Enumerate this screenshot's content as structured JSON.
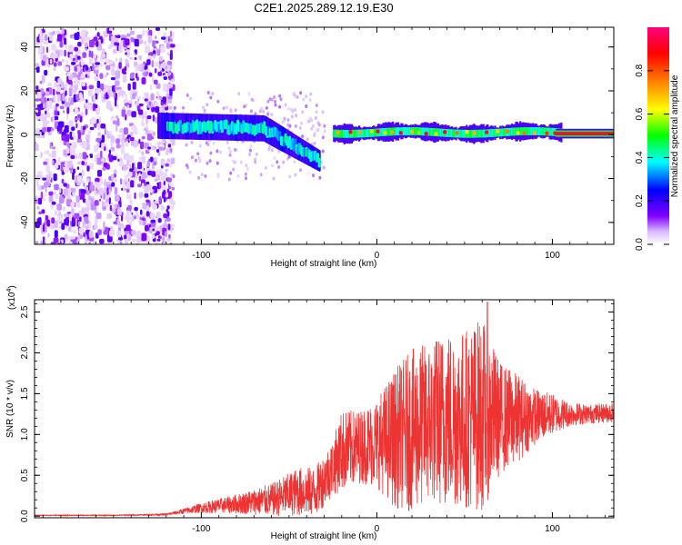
{
  "figure_title": "C2E1.2025.289.12.19.E30",
  "chart_data": [
    {
      "type": "heatmap",
      "xlabel": "Height of straight line (km)",
      "ylabel": "Frequency (Hz)",
      "xlim": [
        -195,
        135
      ],
      "ylim": [
        -50,
        49
      ],
      "xticks": [
        -100,
        0,
        100
      ],
      "yticks": [
        -40,
        -20,
        0,
        20,
        40
      ],
      "xtick_labels": [
        "-100",
        "0",
        "100"
      ],
      "ytick_labels": [
        "-40",
        "-20",
        "0",
        "20",
        "40"
      ],
      "colorbar": {
        "label": "Normalized spectral amplitude",
        "range": [
          0,
          1
        ],
        "ticks": [
          0.0,
          0.2,
          0.4,
          0.6,
          0.8
        ],
        "tick_labels": [
          "0.0",
          "0.2",
          "0.4",
          "0.6",
          "0.8"
        ],
        "colors": [
          "#ffffff",
          "#8000ff",
          "#0000ff",
          "#00ffff",
          "#00ff00",
          "#ffff00",
          "#ff8000",
          "#ff0000",
          "#ff0080"
        ]
      },
      "regions": [
        {
          "name": "noise",
          "x_range": [
            -195,
            -117
          ],
          "freq_range": [
            -50,
            49
          ],
          "amplitude": 0.1
        },
        {
          "name": "ridge-descending",
          "x_range": [
            -120,
            -33
          ],
          "freq_start": 6,
          "freq_end": -12,
          "amplitude": 0.45
        },
        {
          "name": "ridge-flat",
          "x_range": [
            -25,
            105
          ],
          "freq": 1,
          "amplitude": 0.85
        },
        {
          "name": "band-line",
          "x_range": [
            105,
            135
          ],
          "freq": 0.5,
          "amplitude": 0.95
        }
      ]
    },
    {
      "type": "line",
      "xlabel": "Height of straight line (km)",
      "ylabel": "SNR (10 * v/v)",
      "scale_label": "(x10",
      "scale_exponent": "4",
      "xlim": [
        -195,
        135
      ],
      "ylim": [
        -0.02,
        2.65
      ],
      "xticks": [
        -100,
        0,
        100
      ],
      "yticks": [
        0.0,
        0.5,
        1.0,
        1.5,
        2.0,
        2.5
      ],
      "xtick_labels": [
        "-100",
        "0",
        "100"
      ],
      "ytick_labels": [
        "0.0",
        "0.5",
        "1.0",
        "1.5",
        "2.0",
        "2.5"
      ],
      "line_color": "#ee3333",
      "envelope": {
        "x": [
          -195,
          -150,
          -120,
          -100,
          -80,
          -60,
          -45,
          -35,
          -25,
          -20,
          -10,
          0,
          10,
          20,
          30,
          40,
          50,
          60,
          70,
          80,
          90,
          100,
          110,
          120,
          135
        ],
        "mean": [
          0.01,
          0.01,
          0.02,
          0.1,
          0.15,
          0.2,
          0.3,
          0.3,
          0.6,
          0.8,
          0.85,
          0.9,
          0.95,
          1.05,
          1.15,
          1.2,
          1.2,
          1.25,
          1.2,
          1.2,
          1.22,
          1.25,
          1.25,
          1.25,
          1.27
        ],
        "amp": [
          0.005,
          0.005,
          0.01,
          0.06,
          0.12,
          0.2,
          0.3,
          0.3,
          0.35,
          0.5,
          0.45,
          0.55,
          0.85,
          1.0,
          1.0,
          1.1,
          1.1,
          1.2,
          0.7,
          0.55,
          0.35,
          0.25,
          0.15,
          0.12,
          0.12
        ]
      },
      "peak": {
        "x": 63,
        "y": 2.62
      }
    }
  ]
}
